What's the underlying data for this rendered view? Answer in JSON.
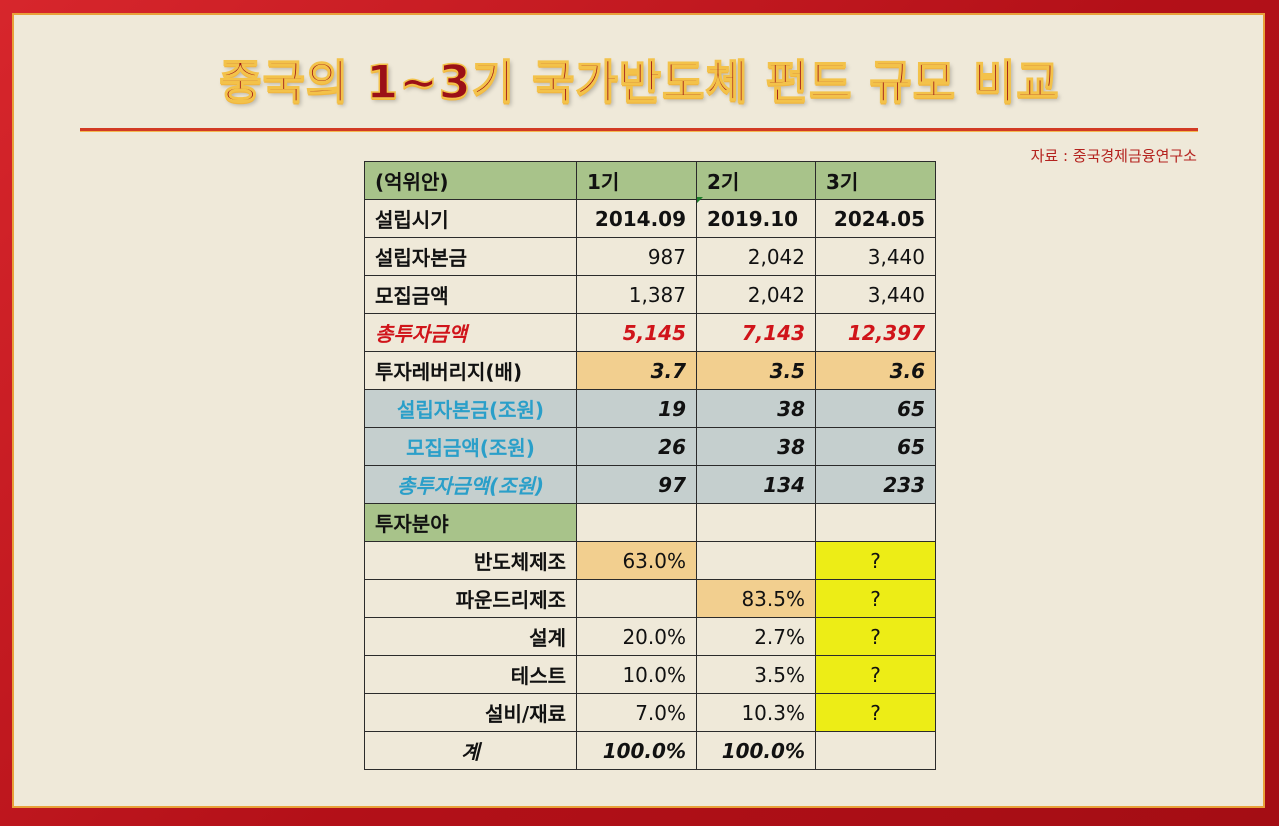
{
  "title": "중국의 1~3기 국가반도체 펀드 규모 비교",
  "source": "자료 : 중국경제금융연구소",
  "header": [
    "(억위안)",
    "1기",
    "2기",
    "3기"
  ],
  "rows": {
    "established": {
      "label": "설립시기",
      "v": [
        "2014.09",
        "2019.10",
        "2024.05"
      ]
    },
    "capital": {
      "label": "설립자본금",
      "v": [
        "987",
        "2,042",
        "3,440"
      ]
    },
    "raised": {
      "label": "모집금액",
      "v": [
        "1,387",
        "2,042",
        "3,440"
      ]
    },
    "total_invest": {
      "label": "총투자금액",
      "v": [
        "5,145",
        "7,143",
        "12,397"
      ]
    },
    "leverage": {
      "label": "투자레버리지(배)",
      "v": [
        "3.7",
        "3.5",
        "3.6"
      ]
    },
    "capital_trn": {
      "label": "설립자본금(조원)",
      "v": [
        "19",
        "38",
        "65"
      ]
    },
    "raised_trn": {
      "label": "모집금액(조원)",
      "v": [
        "26",
        "38",
        "65"
      ]
    },
    "total_trn": {
      "label": "총투자금액(조원)",
      "v": [
        "97",
        "134",
        "233"
      ]
    }
  },
  "invest_section": "투자분야",
  "fields": {
    "fab": {
      "label": "반도체제조",
      "v": [
        "63.0%",
        "",
        "?"
      ]
    },
    "foundry": {
      "label": "파운드리제조",
      "v": [
        "",
        "83.5%",
        "?"
      ]
    },
    "design": {
      "label": "설계",
      "v": [
        "20.0%",
        "2.7%",
        "?"
      ]
    },
    "test": {
      "label": "테스트",
      "v": [
        "10.0%",
        "3.5%",
        "?"
      ]
    },
    "equip": {
      "label": "설비/재료",
      "v": [
        "7.0%",
        "10.3%",
        "?"
      ]
    },
    "sum": {
      "label": "계",
      "v": [
        "100.0%",
        "100.0%",
        ""
      ]
    }
  },
  "colors": {
    "frame": "#b5121b",
    "paper": "#efe9d9",
    "header_green": "#a8c38a",
    "highlight_tan": "#f2cf8f",
    "highlight_gray": "#c5cfce",
    "highlight_yellow": "#eded16",
    "accent_red": "#d0141a",
    "accent_blue": "#2a9fc9"
  }
}
